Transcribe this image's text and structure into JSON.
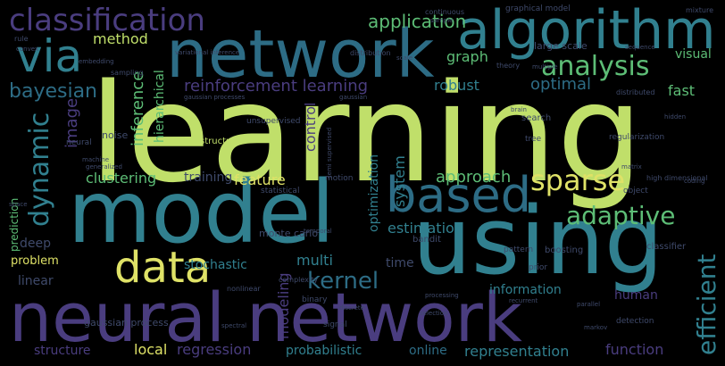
{
  "words": {
    "learning": "learning",
    "model": "model",
    "using": "using",
    "neural_network": "neural network",
    "network": "network",
    "algorithm": "algorithm",
    "classification": "classification",
    "via": "via",
    "based": "based",
    "data": "data",
    "analysis": "analysis",
    "sparse": "sparse",
    "adaptive": "adaptive",
    "efficient": "efficient",
    "dynamic": "dynamic",
    "kernel": "kernel",
    "application": "application",
    "method": "method",
    "bayesian": "bayesian",
    "reinforcement_learning": "reinforcement learning",
    "optimal": "optimal",
    "fast": "fast",
    "robust": "robust",
    "graph": "graph",
    "visual": "visual",
    "image": "image",
    "inference": "inference",
    "hierarchical": "hierarchical",
    "control": "control",
    "clustering": "clustering",
    "feature": "feature",
    "approach": "approach",
    "training": "training",
    "estimation": "estimation",
    "stochastic": "stochastic",
    "optimization": "optimization",
    "system": "system",
    "multi": "multi",
    "time": "time",
    "information": "information",
    "human": "human",
    "structure": "structure",
    "local": "local",
    "regression": "regression",
    "probabilistic": "probabilistic",
    "online": "online",
    "representation": "representation",
    "function": "function",
    "problem": "problem",
    "linear": "linear",
    "deep": "deep",
    "prediction": "prediction",
    "modeling": "modeling",
    "large_scale": "large scale",
    "graphical_model": "graphical model",
    "continuous": "continuous",
    "theory": "theory",
    "noise": "noise",
    "gaussian_process": "gaussian process",
    "monte_carlo": "monte carlo",
    "structured": "structured",
    "unsupervised": "unsupervised",
    "search": "search",
    "tree": "tree",
    "regularization": "regularization",
    "boosting": "boosting",
    "bandit": "bandit",
    "classifier": "classifier",
    "pattern": "pattern",
    "prior": "prior",
    "object": "object",
    "detection": "detection",
    "binary": "binary",
    "signal": "signal",
    "motion": "motion",
    "statistical": "statistical",
    "sampling": "sampling",
    "embedding": "embedding",
    "distribution": "distribution",
    "variational_inference": "variational inference",
    "machine": "machine",
    "neural": "neural",
    "sample": "sample",
    "multiple": "multiple",
    "distributed": "distributed",
    "high_dimensional": "high dimensional",
    "rule": "rule",
    "mixture": "mixture",
    "sequence": "sequence",
    "gaussian_processes": "gaussian processes",
    "generalized": "generalized",
    "convex": "convex",
    "complexity": "complexity",
    "nonlinear": "nonlinear",
    "discrete": "discrete",
    "brain": "brain",
    "temporal": "temporal",
    "coding": "coding",
    "parallel": "parallel",
    "recurrent": "recurrent",
    "processing": "processing",
    "gaussian": "gaussian",
    "scale": "scale",
    "markov": "markov",
    "semi_supervised": "semi supervised",
    "selection": "selection",
    "hidden": "hidden",
    "spectral": "spectral",
    "space": "space",
    "matrix": "matrix"
  },
  "colors": {
    "background": "#000000",
    "purple": "#4a3d7f",
    "teal": "#31808f",
    "green": "#5dbd76",
    "lime": "#c0df6a",
    "yellow": "#dfe267"
  }
}
